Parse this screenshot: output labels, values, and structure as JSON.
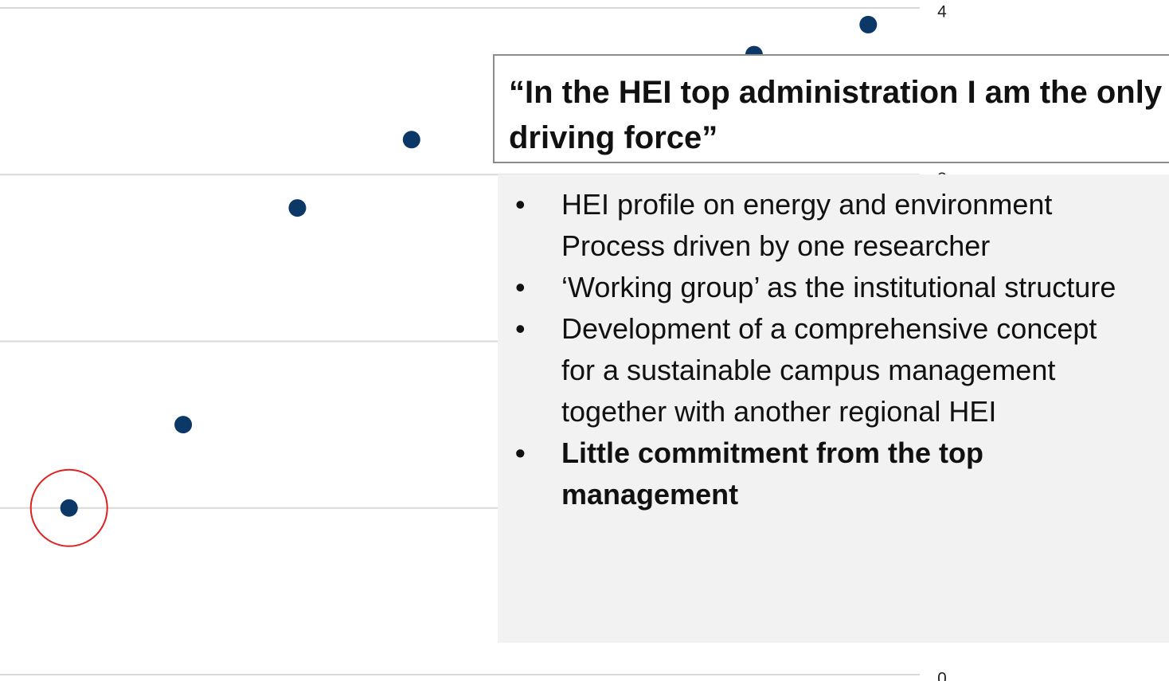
{
  "chart_data": {
    "type": "scatter",
    "x": [
      1,
      2,
      3,
      4,
      7,
      8
    ],
    "values": [
      1.0,
      1.5,
      2.8,
      3.21,
      3.72,
      3.9
    ],
    "color": "#0b3866",
    "xlim": [
      0.5,
      8.5
    ],
    "ylim": [
      0,
      4
    ],
    "yticks": [
      0,
      1,
      2,
      3,
      4
    ],
    "grid": true
  },
  "quote": "“In the HEI top administration I am the only driving force”",
  "bullets": [
    {
      "paragraphs": [
        "HEI profile on energy and environment",
        "Process driven by one researcher"
      ],
      "bold": false
    },
    {
      "paragraphs": [
        "‘Working group’ as the institutional structure"
      ],
      "bold": false
    },
    {
      "paragraphs": [
        "Development of a comprehensive concept for a sustainable campus management together with another regional HEI"
      ],
      "bold": false
    },
    {
      "paragraphs": [
        "Little commitment from the top management"
      ],
      "bold": true
    }
  ]
}
